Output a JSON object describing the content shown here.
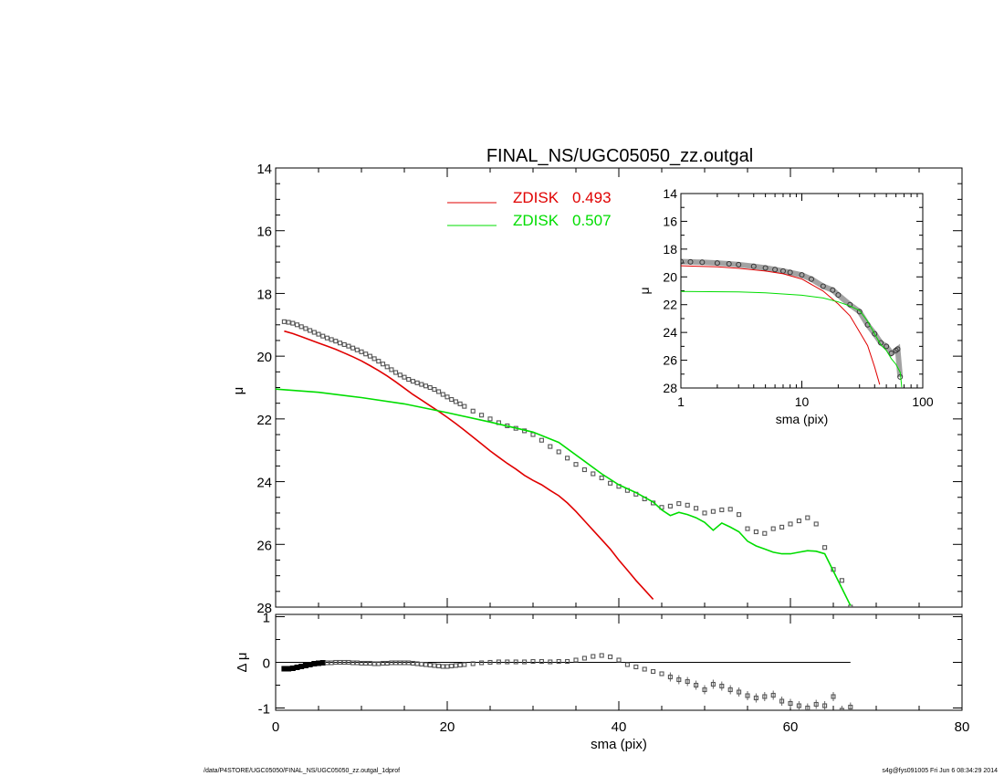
{
  "title": "FINAL_NS/UGC05050_zz.outgal",
  "footer": {
    "path": "/data/P4STORE/UGC05050/FINAL_NS/UGC05050_zz.outgal_1dprof",
    "stamp": "s4g@fys091005  Fri Jun  6 08:34:29 2014"
  },
  "chart_data": [
    {
      "type": "line",
      "panel": "main",
      "title": "FINAL_NS/UGC05050_zz.outgal",
      "xlabel": "sma (pix)",
      "ylabel": "μ",
      "xlim": [
        0,
        80
      ],
      "ylim": [
        28,
        14
      ],
      "y_inverted": true,
      "x_ticks": [
        "0",
        "20",
        "40",
        "60",
        "80"
      ],
      "y_ticks": [
        "14",
        "16",
        "18",
        "20",
        "22",
        "24",
        "26",
        "28"
      ],
      "legend": [
        {
          "label": "ZDISK",
          "value": "0.493",
          "color": "#e00000"
        },
        {
          "label": "ZDISK",
          "value": "0.507",
          "color": "#00dd00"
        }
      ],
      "series": [
        {
          "kind": "points",
          "color": "#555555",
          "x": [
            1.0,
            1.5,
            2.0,
            2.5,
            3.0,
            3.5,
            4.0,
            4.5,
            5.0,
            5.5,
            6.0,
            6.5,
            7.0,
            7.5,
            8.0,
            8.5,
            9.0,
            9.5,
            10.0,
            10.5,
            11.0,
            11.5,
            12.0,
            12.5,
            13.0,
            13.5,
            14.0,
            14.5,
            15.0,
            15.5,
            16.0,
            16.5,
            17.0,
            17.5,
            18.0,
            18.5,
            19.0,
            19.5,
            20.0,
            20.5,
            21.0,
            21.5,
            22.0,
            23.0,
            24.0,
            25.0,
            26.0,
            27.0,
            28.0,
            29.0,
            30.0,
            31.0,
            32.0,
            33.0,
            34.0,
            35.0,
            36.0,
            37.0,
            38.0,
            39.0,
            40.0,
            41.0,
            42.0,
            43.0,
            44.0,
            45.0,
            46.0,
            47.0,
            48.0,
            49.0,
            50.0,
            51.0,
            52.0,
            53.0,
            54.0,
            55.0,
            56.0,
            57.0,
            58.0,
            59.0,
            60.0,
            61.0,
            62.0,
            63.0,
            64.0,
            65.0,
            66.0,
            67.0
          ],
          "y": [
            18.9,
            18.92,
            18.95,
            19.0,
            19.06,
            19.12,
            19.18,
            19.24,
            19.3,
            19.36,
            19.42,
            19.47,
            19.52,
            19.58,
            19.63,
            19.68,
            19.74,
            19.8,
            19.86,
            19.93,
            20.0,
            20.08,
            20.16,
            20.25,
            20.34,
            20.43,
            20.52,
            20.6,
            20.67,
            20.74,
            20.8,
            20.85,
            20.9,
            20.95,
            21.0,
            21.06,
            21.13,
            21.22,
            21.3,
            21.38,
            21.45,
            21.52,
            21.6,
            21.75,
            21.88,
            22.0,
            22.12,
            22.22,
            22.3,
            22.38,
            22.5,
            22.68,
            22.88,
            23.05,
            23.25,
            23.45,
            23.62,
            23.75,
            23.88,
            24.05,
            24.15,
            24.28,
            24.4,
            24.55,
            24.68,
            24.82,
            24.78,
            24.7,
            24.75,
            24.85,
            25.0,
            24.95,
            24.9,
            24.88,
            25.05,
            25.5,
            25.6,
            25.65,
            25.5,
            25.45,
            25.35,
            25.25,
            25.15,
            25.35,
            26.1,
            26.8,
            27.15,
            28.0
          ]
        },
        {
          "kind": "line",
          "color": "#e00000",
          "x": [
            1,
            2,
            3,
            4,
            5,
            6,
            7,
            8,
            9,
            10,
            11,
            12,
            13,
            14,
            15,
            16,
            17,
            18,
            19,
            20,
            21,
            22,
            23,
            24,
            25,
            26,
            27,
            28,
            29,
            30,
            31,
            32,
            33,
            34,
            35,
            36,
            37,
            38,
            39,
            40,
            41,
            42,
            43,
            44
          ],
          "y": [
            19.2,
            19.28,
            19.38,
            19.48,
            19.58,
            19.68,
            19.78,
            19.9,
            20.02,
            20.15,
            20.3,
            20.46,
            20.63,
            20.82,
            21.02,
            21.22,
            21.4,
            21.58,
            21.76,
            21.95,
            22.15,
            22.36,
            22.58,
            22.8,
            23.02,
            23.22,
            23.42,
            23.6,
            23.8,
            23.96,
            24.1,
            24.28,
            24.45,
            24.68,
            24.95,
            25.25,
            25.55,
            25.85,
            26.15,
            26.5,
            26.82,
            27.15,
            27.45,
            27.75
          ]
        },
        {
          "kind": "line",
          "color": "#00dd00",
          "x": [
            0,
            5,
            10,
            15,
            20,
            25,
            30,
            33,
            36,
            38,
            40,
            42,
            44,
            45,
            46,
            47,
            48,
            49,
            50,
            51,
            52,
            53,
            54,
            55,
            56,
            57,
            58,
            59,
            60,
            61,
            62,
            63,
            64,
            65,
            66,
            67
          ],
          "y": [
            21.05,
            21.15,
            21.32,
            21.52,
            21.8,
            22.1,
            22.42,
            22.75,
            23.35,
            23.75,
            24.1,
            24.35,
            24.65,
            24.9,
            25.08,
            24.98,
            25.05,
            25.15,
            25.3,
            25.55,
            25.32,
            25.45,
            25.6,
            25.9,
            26.05,
            26.15,
            26.25,
            26.3,
            26.3,
            26.25,
            26.2,
            26.22,
            26.3,
            26.85,
            27.4,
            27.95
          ]
        }
      ]
    },
    {
      "type": "line",
      "panel": "inset",
      "xlabel": "sma (pix)",
      "ylabel": "μ",
      "x_scale": "log",
      "xlim": [
        1,
        100
      ],
      "ylim": [
        28,
        14
      ],
      "y_inverted": true,
      "x_ticks": [
        "1",
        "10",
        "100"
      ],
      "y_ticks": [
        "14",
        "16",
        "18",
        "20",
        "22",
        "24",
        "26",
        "28"
      ],
      "series": [
        {
          "kind": "points",
          "color": "#555555",
          "x": [
            1.0,
            1.2,
            1.5,
            2.0,
            2.5,
            3.0,
            4.0,
            5.0,
            6.0,
            7.0,
            8.0,
            10.0,
            12.0,
            15.0,
            18.0,
            20.0,
            25.0,
            30.0,
            35.0,
            40.0,
            45.0,
            50.0,
            55.0,
            60.0,
            62.0,
            65.0
          ],
          "y": [
            18.9,
            18.92,
            18.95,
            19.0,
            19.06,
            19.12,
            19.24,
            19.36,
            19.47,
            19.58,
            19.68,
            19.86,
            20.16,
            20.67,
            20.95,
            21.3,
            22.0,
            22.5,
            23.45,
            24.1,
            24.75,
            25.0,
            25.5,
            25.3,
            25.2,
            27.2
          ]
        },
        {
          "kind": "line",
          "color": "#e00000",
          "x": [
            1,
            2,
            3,
            5,
            7,
            10,
            15,
            20,
            25,
            30,
            35,
            40,
            44
          ],
          "y": [
            19.2,
            19.28,
            19.38,
            19.58,
            19.78,
            20.15,
            21.02,
            21.95,
            22.8,
            23.96,
            24.95,
            26.5,
            27.75
          ]
        },
        {
          "kind": "line",
          "color": "#00dd00",
          "x": [
            1,
            3,
            5,
            10,
            15,
            20,
            25,
            30,
            35,
            40,
            45,
            50,
            55,
            60,
            65,
            67
          ],
          "y": [
            21.05,
            21.08,
            21.15,
            21.32,
            21.52,
            21.8,
            22.1,
            22.42,
            23.2,
            24.1,
            24.9,
            25.3,
            25.9,
            26.3,
            26.85,
            27.95
          ]
        }
      ]
    },
    {
      "type": "scatter",
      "panel": "residual",
      "xlabel": "sma (pix)",
      "ylabel": "Δ μ",
      "xlim": [
        0,
        80
      ],
      "ylim": [
        -1.05,
        1.05
      ],
      "x_ticks": [
        "0",
        "20",
        "40",
        "60",
        "80"
      ],
      "y_ticks": [
        "1",
        "0",
        "-1"
      ],
      "zero_line": {
        "x": [
          0,
          67
        ],
        "y": 0
      },
      "series": [
        {
          "kind": "points",
          "color": "#555555",
          "x": [
            1.0,
            1.5,
            2.0,
            2.5,
            3.0,
            3.5,
            4.0,
            4.5,
            5.0,
            5.5,
            6.0,
            6.5,
            7.0,
            7.5,
            8.0,
            8.5,
            9.0,
            9.5,
            10.0,
            10.5,
            11.0,
            11.5,
            12.0,
            12.5,
            13.0,
            13.5,
            14.0,
            14.5,
            15.0,
            15.5,
            16.0,
            16.5,
            17.0,
            17.5,
            18.0,
            18.5,
            19.0,
            19.5,
            20.0,
            20.5,
            21.0,
            21.5,
            22.0,
            23.0,
            24.0,
            25.0,
            26.0,
            27.0,
            28.0,
            29.0,
            30.0,
            31.0,
            32.0,
            33.0,
            34.0,
            35.0,
            36.0,
            37.0,
            38.0,
            39.0,
            40.0,
            41.0,
            42.0,
            43.0,
            44.0,
            45.0,
            46.0,
            47.0,
            48.0,
            49.0,
            50.0,
            51.0,
            52.0,
            53.0,
            54.0,
            55.0,
            56.0,
            57.0,
            58.0,
            59.0,
            60.0,
            61.0,
            62.0,
            63.0,
            64.0,
            65.0,
            66.0,
            67.0
          ],
          "y": [
            -0.14,
            -0.14,
            -0.13,
            -0.11,
            -0.09,
            -0.07,
            -0.05,
            -0.03,
            -0.02,
            -0.01,
            -0.01,
            -0.01,
            0.0,
            0.0,
            0.0,
            0.0,
            -0.01,
            -0.01,
            -0.02,
            -0.02,
            -0.02,
            -0.03,
            -0.03,
            -0.02,
            -0.02,
            -0.01,
            -0.01,
            -0.01,
            -0.01,
            -0.01,
            -0.02,
            -0.03,
            -0.04,
            -0.05,
            -0.06,
            -0.07,
            -0.08,
            -0.09,
            -0.09,
            -0.08,
            -0.07,
            -0.06,
            -0.05,
            -0.03,
            -0.01,
            0.0,
            0.01,
            0.01,
            0.01,
            0.01,
            0.02,
            0.02,
            0.01,
            0.02,
            0.02,
            0.05,
            0.09,
            0.13,
            0.15,
            0.12,
            0.05,
            -0.05,
            -0.1,
            -0.15,
            -0.2,
            -0.25,
            -0.32,
            -0.38,
            -0.42,
            -0.5,
            -0.6,
            -0.48,
            -0.52,
            -0.6,
            -0.65,
            -0.73,
            -0.78,
            -0.75,
            -0.72,
            -0.85,
            -0.9,
            -0.95,
            -1.0,
            -0.92,
            -0.95,
            -0.75,
            -1.05,
            -0.98
          ]
        }
      ]
    }
  ]
}
